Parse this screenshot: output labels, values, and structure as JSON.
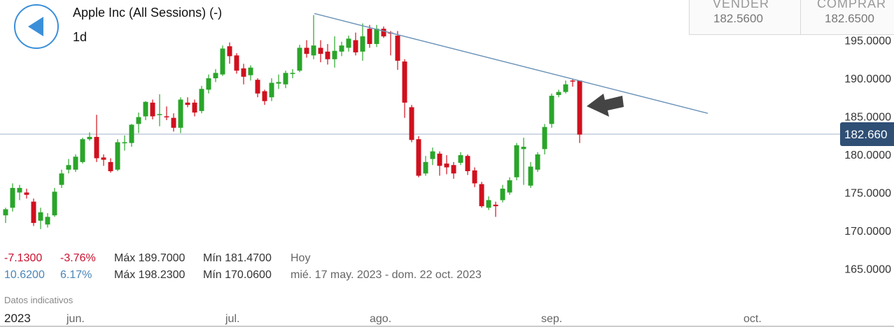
{
  "header": {
    "title": "Apple Inc (All Sessions) (-)",
    "interval": "1d"
  },
  "quote": {
    "sell_label": "VENDER",
    "sell_value": "182.5600",
    "buy_label": "COMPRAR",
    "buy_value": "182.6500"
  },
  "stats": {
    "today": {
      "change": "-7.1300",
      "change_pct": "-3.76%",
      "max": "Máx 189.7000",
      "min": "Mín 181.4700",
      "period": "Hoy"
    },
    "range": {
      "change": "10.6200",
      "change_pct": "6.17%",
      "max": "Máx 198.2300",
      "min": "Mín 170.0600",
      "period": "mié. 17 may. 2023 - dom. 22 oct. 2023"
    }
  },
  "footnote": "Datos indicativos",
  "colors": {
    "up": "#2aa52a",
    "down": "#d0101e",
    "trendline": "#6b93b8",
    "price_badge": "#2f4f75",
    "back_button": "#3b8fd9"
  },
  "icons": {
    "back": "back-arrow-icon",
    "annotation": "annotation-arrow-icon"
  },
  "chart_data": {
    "type": "candlestick",
    "title": "Apple Inc (All Sessions) (-)",
    "interval": "1d",
    "ylim": [
      161,
      202
    ],
    "y_ticks": [
      "195.0000",
      "190.0000",
      "185.0000",
      "180.0000",
      "175.0000",
      "170.0000",
      "165.0000"
    ],
    "x_ticks": [
      "2023",
      "jun.",
      "jul.",
      "ago.",
      "sep.",
      "oct."
    ],
    "last_price": "182.660",
    "last_value": 182.66,
    "trendline": {
      "from": 198.5,
      "to": 185.4
    },
    "candles": [
      [
        172.0,
        172.8,
        171.0,
        173.0
      ],
      [
        173.0,
        175.6,
        172.5,
        176.2
      ],
      [
        175.0,
        175.6,
        174.0,
        176.0
      ],
      [
        175.0,
        174.7,
        174.2,
        175.5
      ],
      [
        173.8,
        171.0,
        170.6,
        174.2
      ],
      [
        171.3,
        172.4,
        170.2,
        173.0
      ],
      [
        170.8,
        171.8,
        170.4,
        172.3
      ],
      [
        172.0,
        175.1,
        171.8,
        175.6
      ],
      [
        176.0,
        177.5,
        175.6,
        178.0
      ],
      [
        178.0,
        178.6,
        177.5,
        179.4
      ],
      [
        178.0,
        179.7,
        177.7,
        180.0
      ],
      [
        179.0,
        182.0,
        178.8,
        182.2
      ],
      [
        182.0,
        182.3,
        181.8,
        182.9
      ],
      [
        182.3,
        179.5,
        179.0,
        185.2
      ],
      [
        179.6,
        179.3,
        178.5,
        180.0
      ],
      [
        179.0,
        177.8,
        177.6,
        179.5
      ],
      [
        178.0,
        181.6,
        177.8,
        182.0
      ],
      [
        181.5,
        181.6,
        180.5,
        182.5
      ],
      [
        181.5,
        183.9,
        181.0,
        184.0
      ],
      [
        184.0,
        184.9,
        182.8,
        185.5
      ],
      [
        185.0,
        186.9,
        184.5,
        187.0
      ],
      [
        186.8,
        185.0,
        184.6,
        187.2
      ],
      [
        185.2,
        185.3,
        183.7,
        187.9
      ],
      [
        185.0,
        184.9,
        184.5,
        186.3
      ],
      [
        184.8,
        183.5,
        183.0,
        185.4
      ],
      [
        183.5,
        187.2,
        182.8,
        187.5
      ],
      [
        186.8,
        186.5,
        186.2,
        187.5
      ],
      [
        186.8,
        185.5,
        185.0,
        187.2
      ],
      [
        185.7,
        188.6,
        185.4,
        189.0
      ],
      [
        188.5,
        190.0,
        188.0,
        190.5
      ],
      [
        190.0,
        190.7,
        189.5,
        191.2
      ],
      [
        190.5,
        193.9,
        190.3,
        194.3
      ],
      [
        194.2,
        192.9,
        191.9,
        194.7
      ],
      [
        193.0,
        191.0,
        190.6,
        193.3
      ],
      [
        191.3,
        190.2,
        189.2,
        191.9
      ],
      [
        190.4,
        191.4,
        189.7,
        191.7
      ],
      [
        189.8,
        188.0,
        187.5,
        190.0
      ],
      [
        188.3,
        187.0,
        186.5,
        188.5
      ],
      [
        187.5,
        189.4,
        187.0,
        190.0
      ],
      [
        189.3,
        189.5,
        188.6,
        190.5
      ],
      [
        189.2,
        190.7,
        188.7,
        191.0
      ],
      [
        190.7,
        190.7,
        190.0,
        191.2
      ],
      [
        191.0,
        194.0,
        190.8,
        194.4
      ],
      [
        194.0,
        193.2,
        192.7,
        195.0
      ],
      [
        193.0,
        194.3,
        192.5,
        198.3
      ],
      [
        194.0,
        193.2,
        192.1,
        195.0
      ],
      [
        193.5,
        192.5,
        191.8,
        194.5
      ],
      [
        192.5,
        193.6,
        191.4,
        195.5
      ],
      [
        193.5,
        194.3,
        192.9,
        194.8
      ],
      [
        194.0,
        195.2,
        193.5,
        195.6
      ],
      [
        195.0,
        193.4,
        193.0,
        196.0
      ],
      [
        193.5,
        195.5,
        192.3,
        197.2
      ],
      [
        196.5,
        194.5,
        194.0,
        197.0
      ],
      [
        194.5,
        196.5,
        194.1,
        197.0
      ],
      [
        196.5,
        195.5,
        195.3,
        196.8
      ],
      [
        196.0,
        195.9,
        193.0,
        196.2
      ],
      [
        195.6,
        192.3,
        191.1,
        196.2
      ],
      [
        192.2,
        186.8,
        184.8,
        192.5
      ],
      [
        186.2,
        181.9,
        181.6,
        186.5
      ],
      [
        182.0,
        177.2,
        177.0,
        182.4
      ],
      [
        177.5,
        179.0,
        177.2,
        179.8
      ],
      [
        179.4,
        180.4,
        178.6,
        180.9
      ],
      [
        180.1,
        178.5,
        177.2,
        180.4
      ],
      [
        178.8,
        178.3,
        177.4,
        179.9
      ],
      [
        178.6,
        177.5,
        176.8,
        179.0
      ],
      [
        178.9,
        179.9,
        178.6,
        180.3
      ],
      [
        179.8,
        177.8,
        177.3,
        180.0
      ],
      [
        177.9,
        176.2,
        175.7,
        178.3
      ],
      [
        176.1,
        173.2,
        173.0,
        176.4
      ],
      [
        173.0,
        174.0,
        172.7,
        174.5
      ],
      [
        173.4,
        173.2,
        171.8,
        173.8
      ],
      [
        174.0,
        175.5,
        173.7,
        176.0
      ],
      [
        175.0,
        176.6,
        174.7,
        177.0
      ],
      [
        177.0,
        181.2,
        176.6,
        181.5
      ],
      [
        180.7,
        181.0,
        176.0,
        182.2
      ],
      [
        175.9,
        178.4,
        175.6,
        179.0
      ],
      [
        178.0,
        180.0,
        177.7,
        180.3
      ],
      [
        180.7,
        183.6,
        180.0,
        184.0
      ],
      [
        184.0,
        187.7,
        183.5,
        188.0
      ],
      [
        187.8,
        188.2,
        187.5,
        188.5
      ],
      [
        188.2,
        189.2,
        188.0,
        189.7
      ],
      [
        189.7,
        189.6,
        188.9,
        189.9
      ],
      [
        189.7,
        182.6,
        181.5,
        189.7
      ]
    ]
  }
}
